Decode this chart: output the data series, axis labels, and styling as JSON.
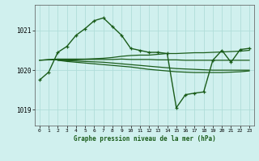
{
  "title": "Graphe pression niveau de la mer (hPa)",
  "bg_color": "#d0f0ee",
  "grid_color": "#b0ddd9",
  "line_color": "#1a5c1a",
  "xlim": [
    -0.5,
    23.5
  ],
  "ylim": [
    1018.6,
    1021.65
  ],
  "yticks": [
    1019,
    1020,
    1021
  ],
  "xticks": [
    0,
    1,
    2,
    3,
    4,
    5,
    6,
    7,
    8,
    9,
    10,
    11,
    12,
    13,
    14,
    15,
    16,
    17,
    18,
    19,
    20,
    21,
    22,
    23
  ],
  "series": [
    {
      "x": [
        0,
        1,
        2,
        3,
        4,
        5,
        6,
        7,
        8,
        9,
        10,
        11,
        12,
        13,
        14,
        15,
        16,
        17,
        18,
        19,
        20,
        21,
        22,
        23
      ],
      "y": [
        1020.25,
        1020.27,
        1020.28,
        1020.28,
        1020.28,
        1020.28,
        1020.29,
        1020.3,
        1020.32,
        1020.35,
        1020.37,
        1020.38,
        1020.38,
        1020.4,
        1020.42,
        1020.42,
        1020.43,
        1020.44,
        1020.44,
        1020.45,
        1020.46,
        1020.47,
        1020.48,
        1020.5
      ],
      "marker": null,
      "linewidth": 0.9
    },
    {
      "x": [
        0,
        1,
        2,
        3,
        4,
        5,
        6,
        7,
        8,
        9,
        10,
        11,
        12,
        13,
        14,
        15,
        16,
        17,
        18,
        19,
        20,
        21,
        22,
        23
      ],
      "y": [
        1020.25,
        1020.26,
        1020.26,
        1020.26,
        1020.26,
        1020.27,
        1020.27,
        1020.27,
        1020.27,
        1020.28,
        1020.27,
        1020.27,
        1020.27,
        1020.26,
        1020.26,
        1020.26,
        1020.25,
        1020.25,
        1020.25,
        1020.25,
        1020.25,
        1020.25,
        1020.25,
        1020.25
      ],
      "marker": null,
      "linewidth": 0.9
    },
    {
      "x": [
        2,
        3,
        4,
        5,
        6,
        7,
        8,
        9,
        10,
        11,
        12,
        13,
        14,
        15,
        16,
        17,
        18,
        19,
        20,
        21,
        22,
        23
      ],
      "y": [
        1020.25,
        1020.24,
        1020.23,
        1020.22,
        1020.21,
        1020.2,
        1020.18,
        1020.16,
        1020.14,
        1020.12,
        1020.1,
        1020.08,
        1020.06,
        1020.04,
        1020.03,
        1020.02,
        1020.01,
        1020.0,
        1020.0,
        1020.0,
        1020.0,
        1020.0
      ],
      "marker": null,
      "linewidth": 0.9
    },
    {
      "x": [
        2,
        3,
        4,
        5,
        6,
        7,
        8,
        9,
        10,
        11,
        12,
        13,
        14,
        15,
        16,
        17,
        18,
        19,
        20,
        21,
        22,
        23
      ],
      "y": [
        1020.25,
        1020.22,
        1020.2,
        1020.18,
        1020.16,
        1020.14,
        1020.12,
        1020.1,
        1020.08,
        1020.05,
        1020.02,
        1020.0,
        1019.98,
        1019.96,
        1019.95,
        1019.94,
        1019.94,
        1019.94,
        1019.94,
        1019.95,
        1019.96,
        1019.98
      ],
      "marker": null,
      "linewidth": 0.9
    },
    {
      "x": [
        0,
        1,
        2,
        3,
        4,
        5,
        6,
        7,
        8,
        9,
        10,
        11,
        12,
        13,
        14,
        15,
        16,
        17,
        18,
        19,
        20,
        21,
        22,
        23
      ],
      "y": [
        1019.75,
        1019.95,
        1020.45,
        1020.6,
        1020.88,
        1021.05,
        1021.25,
        1021.32,
        1021.1,
        1020.88,
        1020.55,
        1020.5,
        1020.45,
        1020.45,
        1020.42,
        1019.05,
        1019.38,
        1019.42,
        1019.45,
        1020.25,
        1020.5,
        1020.2,
        1020.52,
        1020.55
      ],
      "marker": "+",
      "linewidth": 1.0
    }
  ]
}
